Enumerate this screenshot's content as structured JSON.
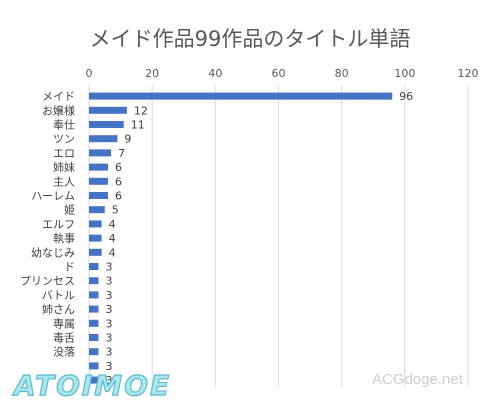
{
  "chart_data": {
    "type": "bar",
    "orientation": "horizontal",
    "title": "メイド作品99作品のタイトル単語",
    "xlim": [
      0,
      120
    ],
    "xticks": [
      "0",
      "20",
      "40",
      "60",
      "80",
      "100",
      "120"
    ],
    "grid": true,
    "legend": "none",
    "bar_color": "#4472c4",
    "categories": [
      "メイド",
      "お嬢様",
      "奉仕",
      "ツン",
      "エロ",
      "姉妹",
      "主人",
      "ハーレム",
      "姫",
      "エルフ",
      "執事",
      "幼なじみ",
      "ド",
      "プリンセス",
      "バトル",
      "姉さん",
      "専属",
      "毒舌",
      "没落",
      "",
      ""
    ],
    "values": [
      96,
      12,
      11,
      9,
      7,
      6,
      6,
      6,
      5,
      4,
      4,
      4,
      3,
      3,
      3,
      3,
      3,
      3,
      3,
      3,
      3
    ]
  },
  "watermarks": {
    "logo": "ATOIMOE",
    "site": "ACGdoge.net"
  }
}
